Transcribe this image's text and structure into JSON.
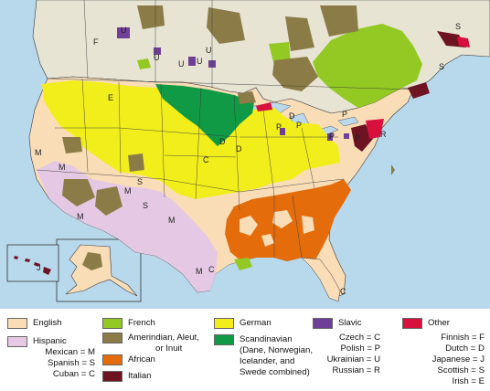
{
  "colors": {
    "water": "#b8d8ec",
    "english": "#f9ddb7",
    "hispanic": "#e5c8e3",
    "french": "#93c923",
    "amerindian": "#8b7c47",
    "african": "#e46c0b",
    "italian": "#6e1322",
    "german": "#f2ee1c",
    "scandinavian": "#119a45",
    "slavic": "#6f3f98",
    "other": "#d7103e",
    "border": "#3a3a3a"
  },
  "legend": {
    "english": "English",
    "hispanic": "Hispanic",
    "hispanic_codes": [
      "Mexican = M",
      "Spanish = S",
      "Cuban = C"
    ],
    "french": "French",
    "amerindian": [
      "Amerindian, Aleut,",
      "or Inuit"
    ],
    "african": "African",
    "italian": "Italian",
    "german": "German",
    "scandinavian": "Scandinavian",
    "scandinavian_note": [
      "(Dane, Norwegian,",
      "Icelander, and",
      "Swede combined)"
    ],
    "slavic": "Slavic",
    "slavic_codes": [
      "Czech = C",
      "Polish = P",
      "Ukrainian = U",
      "Russian = R"
    ],
    "other": "Other",
    "other_codes": [
      "Finnish = F",
      "Dutch = D",
      "Japanese = J",
      "Scottish = S",
      "Irish = E"
    ]
  },
  "map_labels": [
    "F",
    "U",
    "U",
    "U",
    "U",
    "U",
    "E",
    "S",
    "S",
    "D",
    "P",
    "P",
    "P",
    "P",
    "D",
    "D",
    "P",
    "R",
    "C",
    "S",
    "M",
    "M",
    "M",
    "M",
    "S",
    "M",
    "M",
    "C",
    "C",
    "J"
  ]
}
